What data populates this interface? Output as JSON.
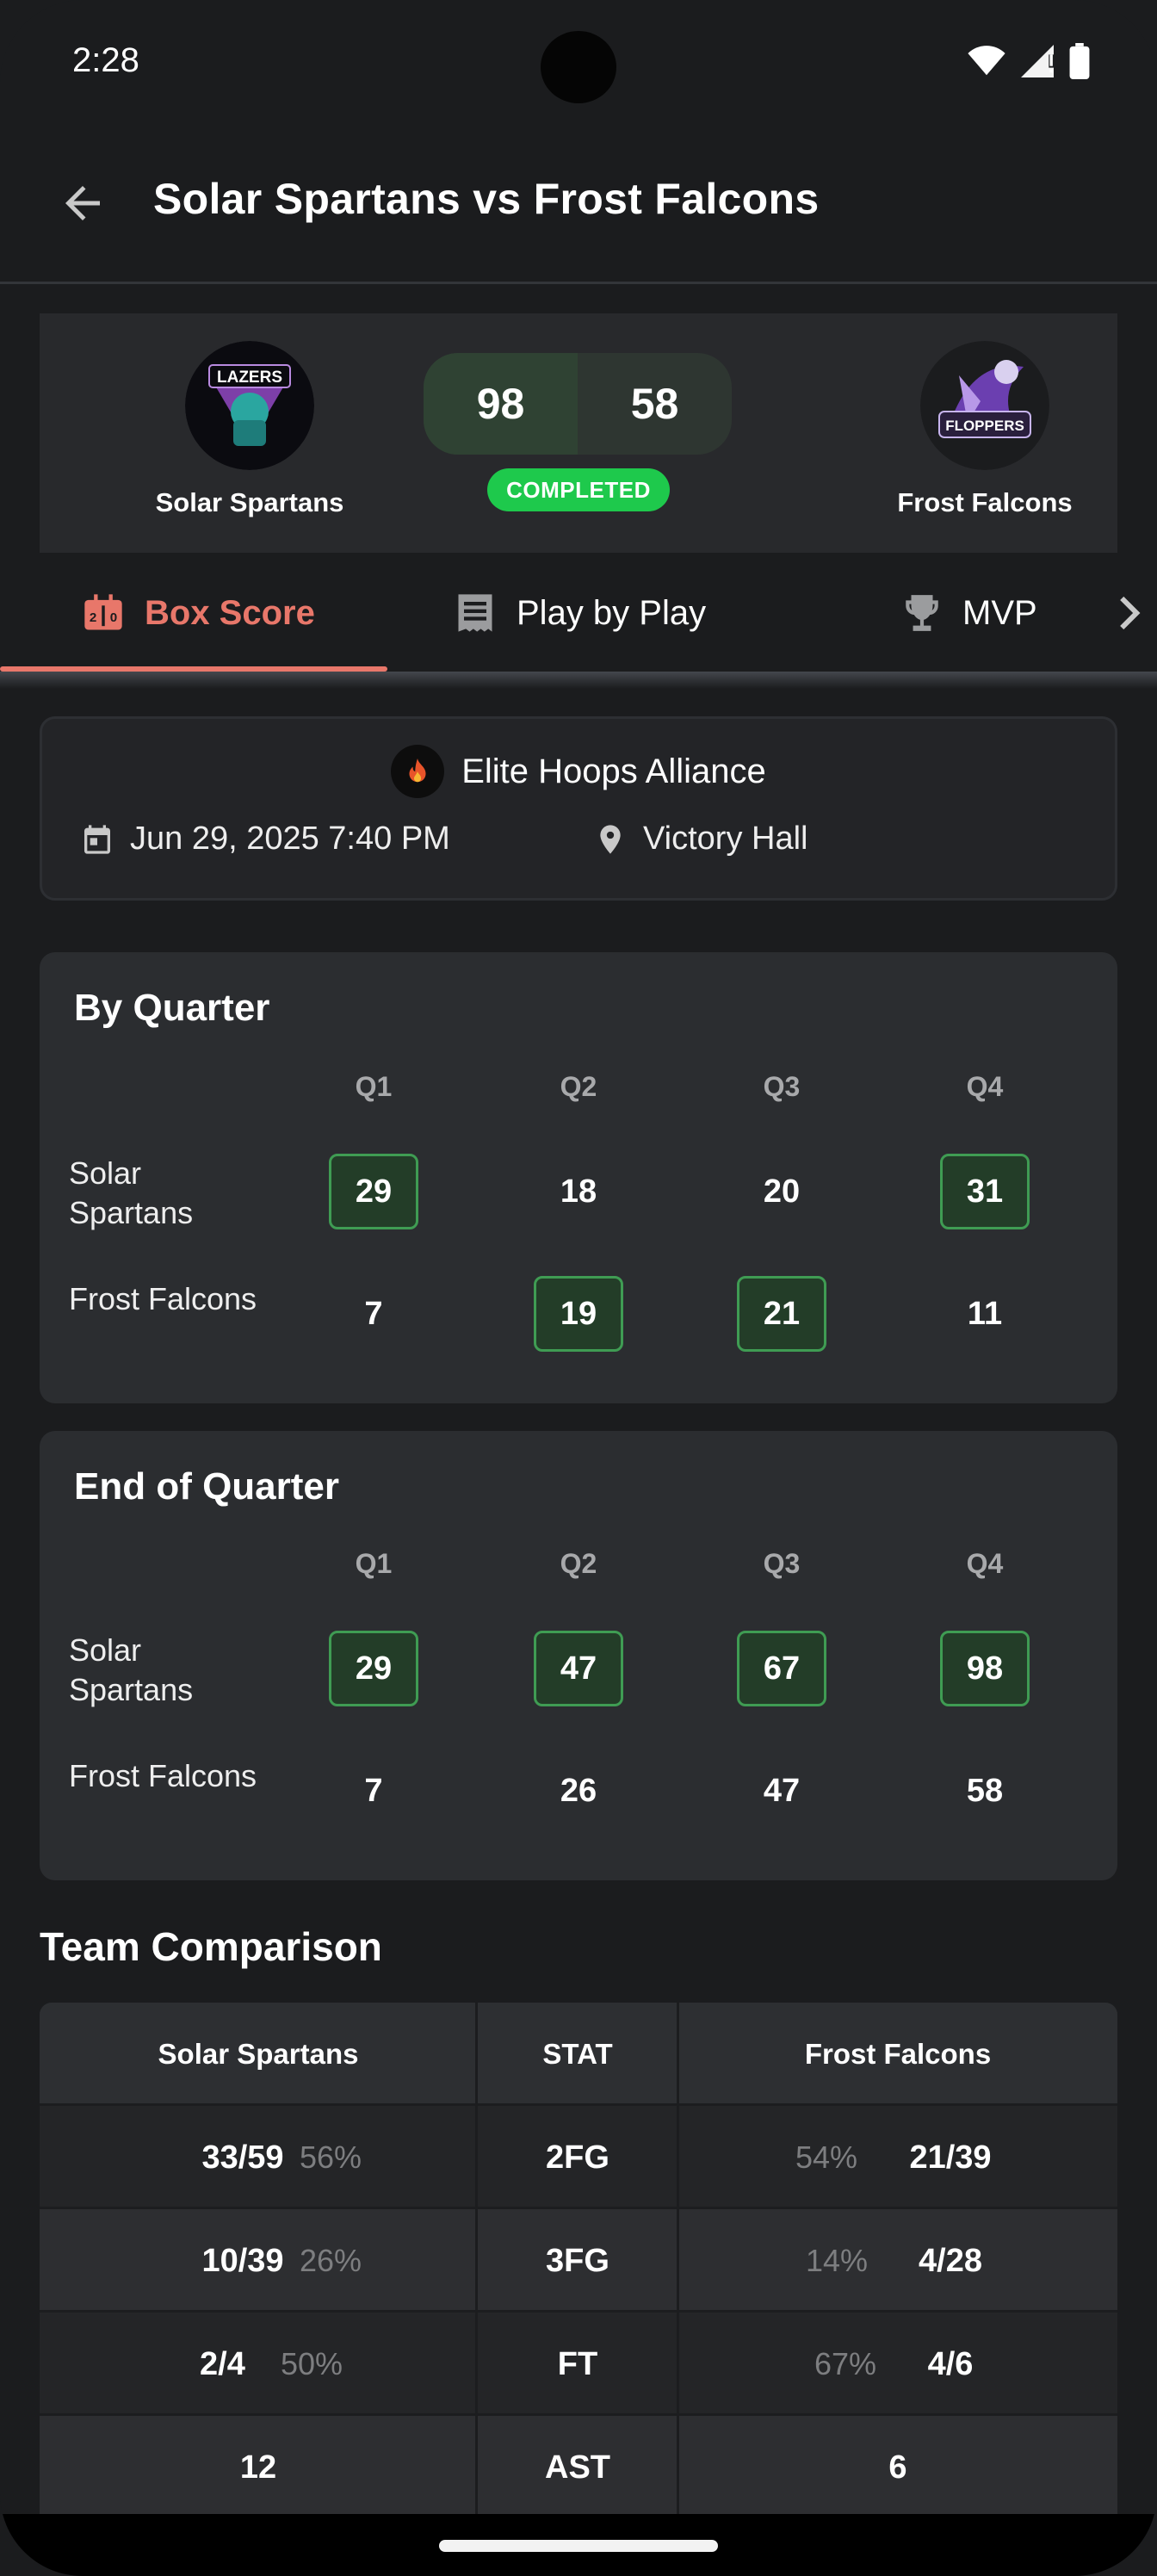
{
  "status_bar": {
    "time": "2:28"
  },
  "header": {
    "title": "Solar Spartans vs Frost Falcons"
  },
  "match": {
    "home": {
      "name": "Solar Spartans",
      "logo_text": "LAZERS",
      "score": "98"
    },
    "away": {
      "name": "Frost Falcons",
      "logo_text": "FLOPPERS",
      "score": "58"
    },
    "status": "COMPLETED"
  },
  "tabs": [
    {
      "label": "Box Score",
      "icon": "scoreboard-icon",
      "active": true
    },
    {
      "label": "Play by Play",
      "icon": "receipt-list-icon",
      "active": false
    },
    {
      "label": "MVP",
      "icon": "trophy-icon",
      "active": false
    }
  ],
  "game_info": {
    "league": "Elite Hoops Alliance",
    "datetime": "Jun 29, 2025 7:40 PM",
    "venue": "Victory Hall"
  },
  "by_quarter": {
    "title": "By Quarter",
    "quarters": [
      "Q1",
      "Q2",
      "Q3",
      "Q4"
    ],
    "rows": [
      {
        "team_line1": "Solar",
        "team_line2": "Spartans",
        "values": [
          "29",
          "18",
          "20",
          "31"
        ],
        "highlight": [
          true,
          false,
          false,
          true
        ]
      },
      {
        "team_line1": "Frost Falcons",
        "team_line2": "",
        "values": [
          "7",
          "19",
          "21",
          "11"
        ],
        "highlight": [
          false,
          true,
          true,
          false
        ]
      }
    ]
  },
  "end_of_quarter": {
    "title": "End of Quarter",
    "quarters": [
      "Q1",
      "Q2",
      "Q3",
      "Q4"
    ],
    "rows": [
      {
        "team_line1": "Solar",
        "team_line2": "Spartans",
        "values": [
          "29",
          "47",
          "67",
          "98"
        ],
        "highlight": [
          true,
          true,
          true,
          true
        ]
      },
      {
        "team_line1": "Frost Falcons",
        "team_line2": "",
        "values": [
          "7",
          "26",
          "47",
          "58"
        ],
        "highlight": [
          false,
          false,
          false,
          false
        ]
      }
    ]
  },
  "team_comparison": {
    "title": "Team Comparison",
    "headers": {
      "home": "Solar Spartans",
      "stat": "STAT",
      "away": "Frost Falcons"
    },
    "rows": [
      {
        "stat": "2FG",
        "home": "33/59",
        "home_pct": "56%",
        "away": "21/39",
        "away_pct": "54%"
      },
      {
        "stat": "3FG",
        "home": "10/39",
        "home_pct": "26%",
        "away": "4/28",
        "away_pct": "14%"
      },
      {
        "stat": "FT",
        "home": "2/4",
        "home_pct": "50%",
        "away": "4/6",
        "away_pct": "67%"
      },
      {
        "stat": "AST",
        "home": "12",
        "home_pct": "",
        "away": "6",
        "away_pct": ""
      }
    ]
  },
  "colors": {
    "accent": "#e8776a",
    "status_green": "#1ec94c",
    "highlight_border": "#3f9c53"
  }
}
